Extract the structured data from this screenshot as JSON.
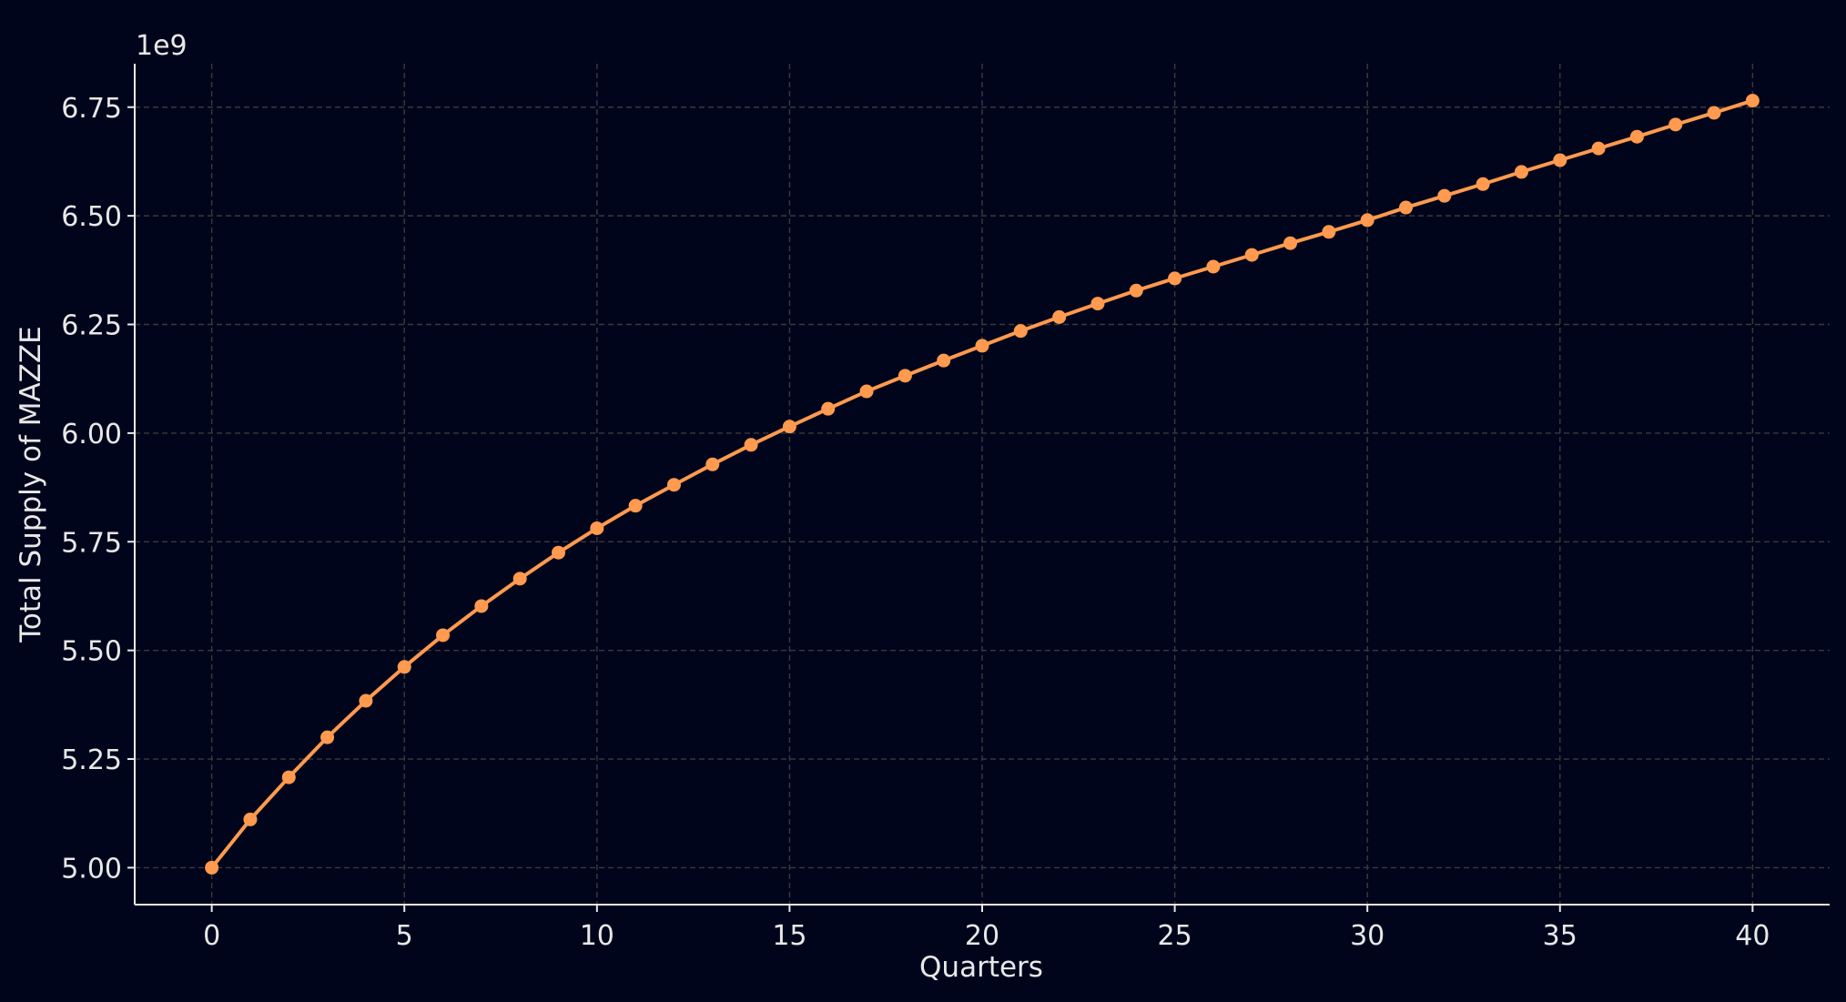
{
  "chart_data": {
    "type": "line",
    "title": "",
    "xlabel": "Quarters",
    "ylabel": "Total Supply of MAZZE",
    "y_offset_label": "1e9",
    "xlim": [
      -2,
      42
    ],
    "ylim": [
      4.915,
      6.85
    ],
    "y_scale_factor": 1000000000,
    "grid": true,
    "legend": "none",
    "x_ticks": [
      0,
      5,
      10,
      15,
      20,
      25,
      30,
      35,
      40
    ],
    "x_tick_labels": [
      "0",
      "5",
      "10",
      "15",
      "20",
      "25",
      "30",
      "35",
      "40"
    ],
    "y_ticks": [
      5.0,
      5.25,
      5.5,
      5.75,
      6.0,
      6.25,
      6.5,
      6.75
    ],
    "y_tick_labels": [
      "5.00",
      "5.25",
      "5.50",
      "5.75",
      "6.00",
      "6.25",
      "6.50",
      "6.75"
    ],
    "colors": {
      "background": "#00051c",
      "series": "#ff9a4f"
    },
    "series": [
      {
        "x": [
          0,
          1,
          2,
          3,
          4,
          5,
          6,
          7,
          8,
          9,
          10,
          11,
          12,
          13,
          14,
          15,
          16,
          17,
          18,
          19,
          20,
          21,
          22,
          23,
          24,
          25,
          26,
          27,
          28,
          29,
          30,
          31,
          32,
          33,
          34,
          35,
          36,
          37,
          38,
          39,
          40
        ],
        "values": [
          5.0,
          5.111,
          5.208,
          5.3,
          5.384,
          5.462,
          5.535,
          5.602,
          5.665,
          5.725,
          5.781,
          5.833,
          5.881,
          5.928,
          5.973,
          6.015,
          6.056,
          6.096,
          6.132,
          6.167,
          6.201,
          6.235,
          6.267,
          6.298,
          6.328,
          6.356,
          6.383,
          6.41,
          6.437,
          6.463,
          6.49,
          6.519,
          6.546,
          6.573,
          6.601,
          6.628,
          6.655,
          6.682,
          6.71,
          6.737,
          6.765
        ]
      }
    ]
  }
}
